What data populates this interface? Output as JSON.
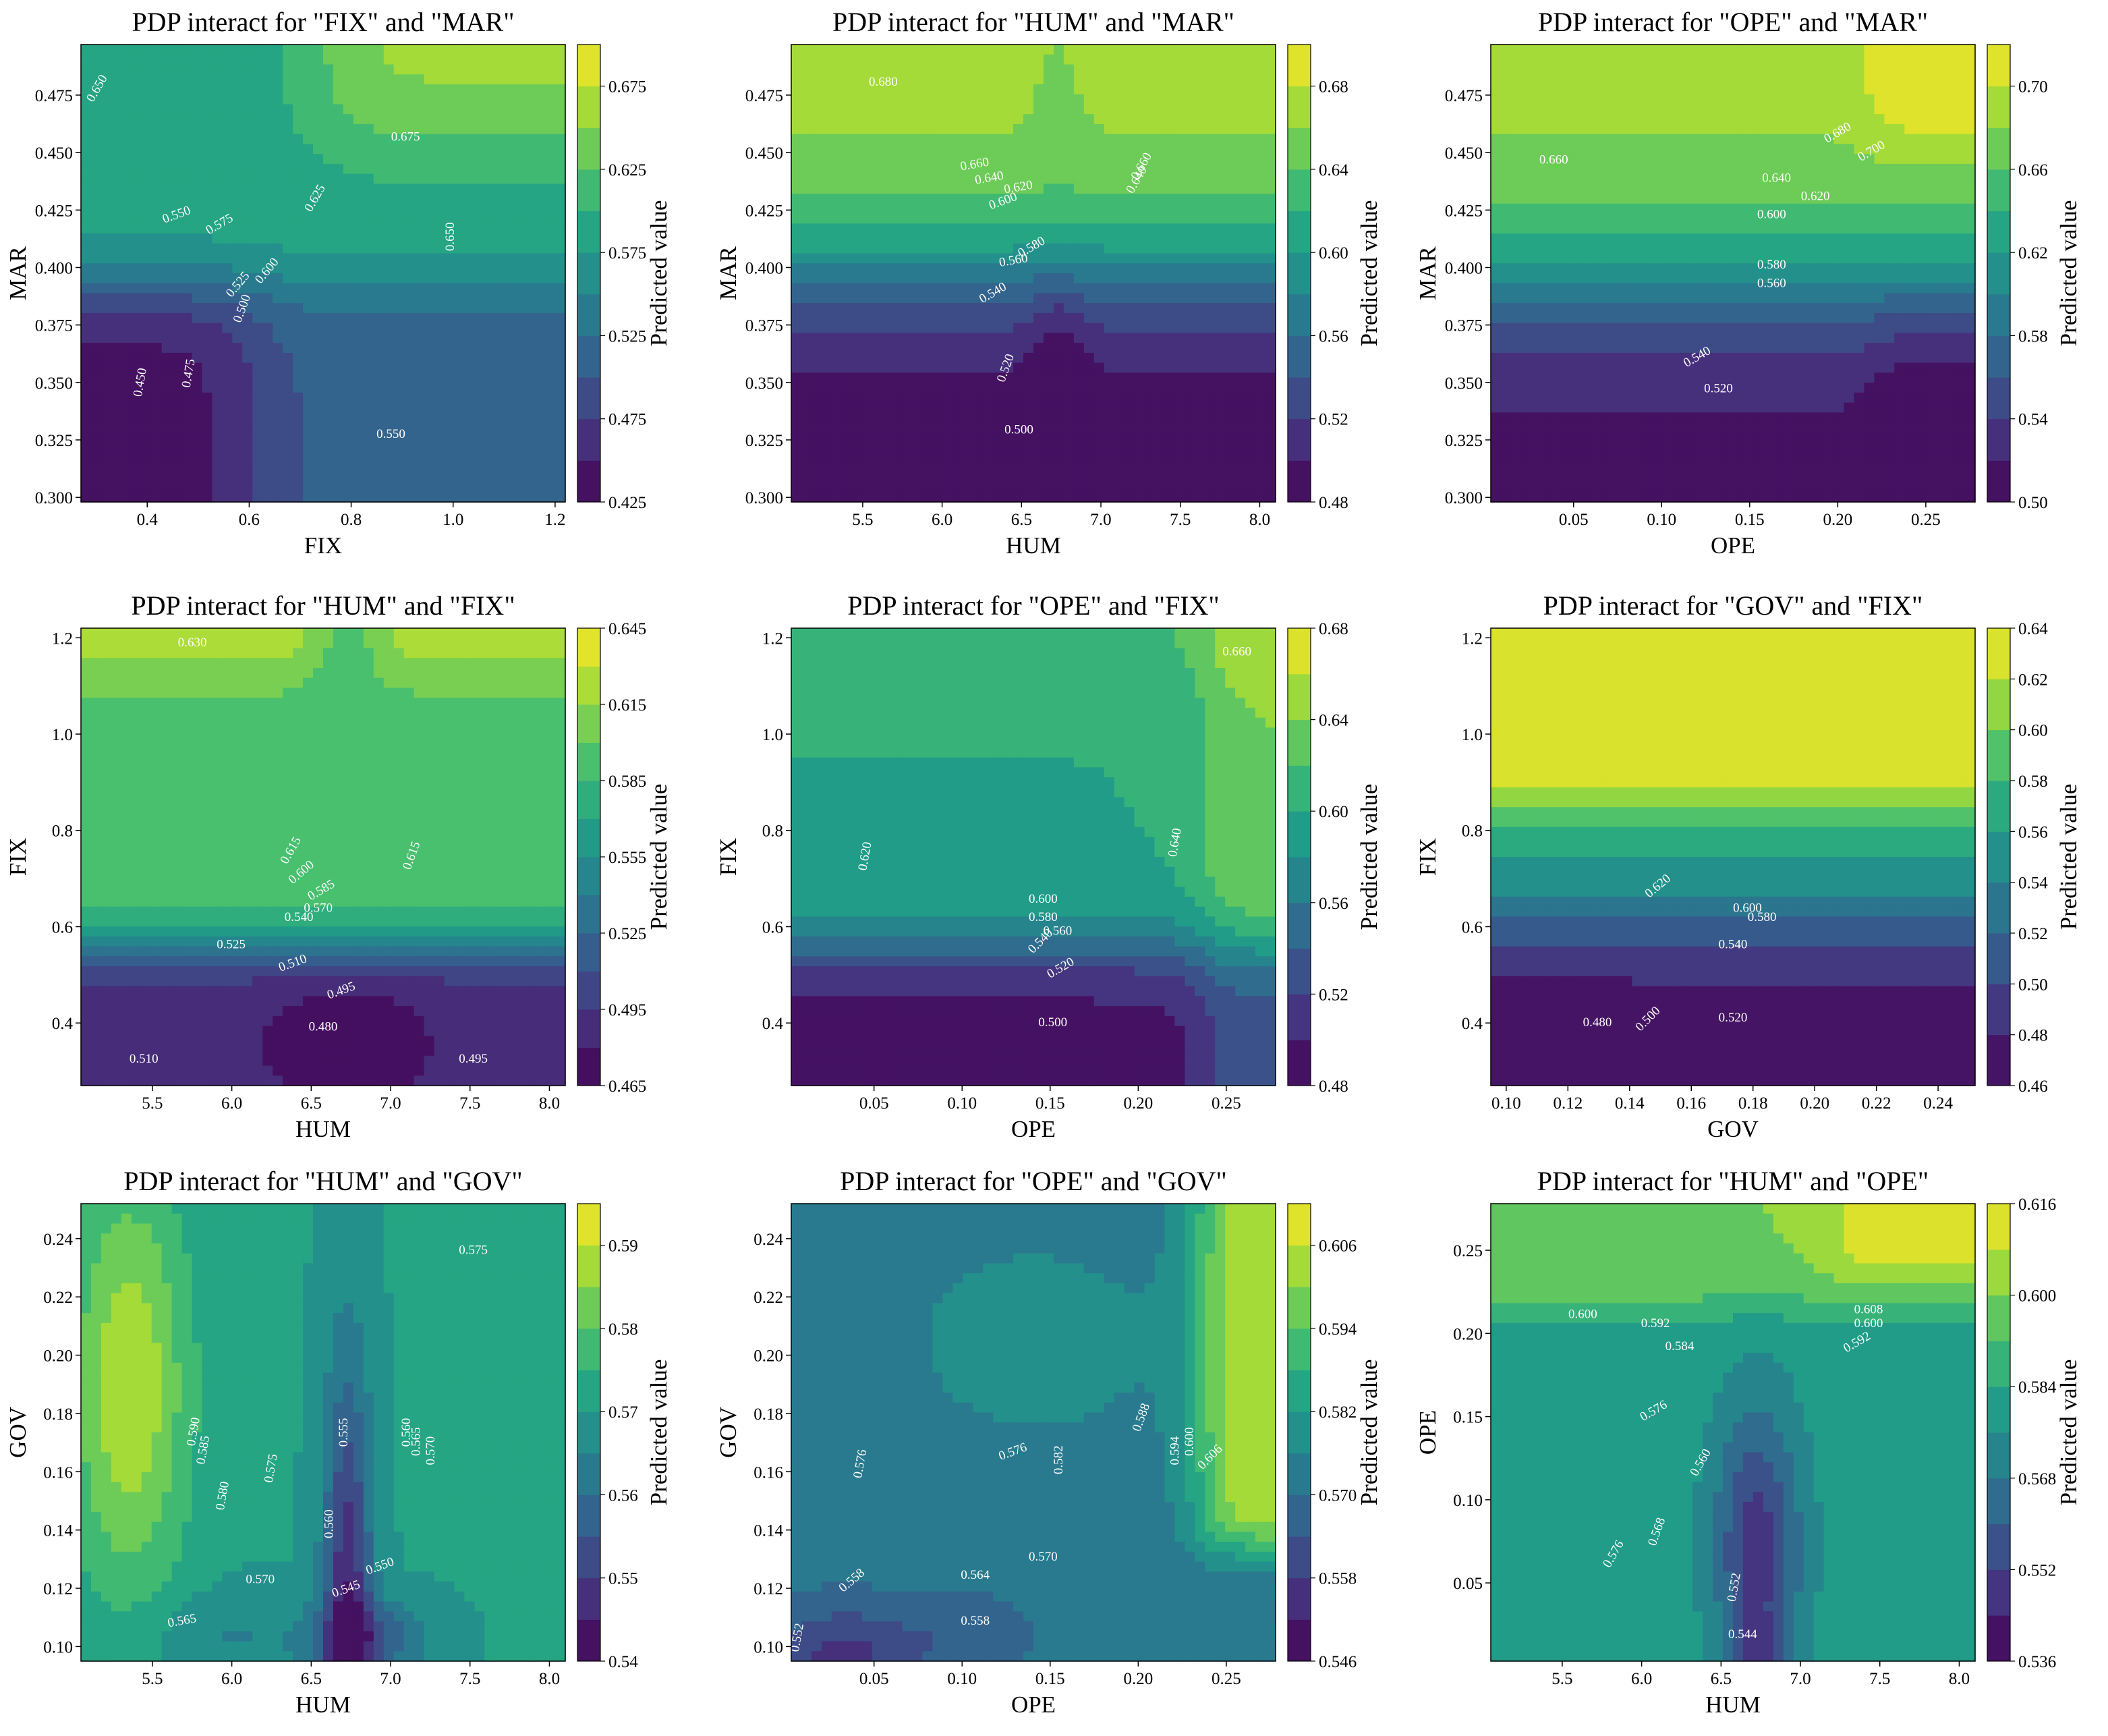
{
  "colormap": [
    "#440154",
    "#46327e",
    "#365c8d",
    "#277f8e",
    "#1fa187",
    "#4ac16d",
    "#a0da39",
    "#fde725"
  ],
  "contour_line_color": "#ffffff",
  "colorbar_label": "Predicted value",
  "chart_data": [
    {
      "type": "heatmap",
      "title": "PDP interact for \"FIX\" and \"MAR\"",
      "xlabel": "FIX",
      "ylabel": "MAR",
      "xlim": [
        0.27,
        1.22
      ],
      "ylim": [
        0.298,
        0.497
      ],
      "xticks": [
        "0.4",
        "0.6",
        "0.8",
        "1.0",
        "1.2"
      ],
      "yticks": [
        "0.300",
        "0.325",
        "0.350",
        "0.375",
        "0.400",
        "0.425",
        "0.450",
        "0.475"
      ],
      "colorbar_ticks": [
        "0.425",
        "0.475",
        "0.525",
        "0.575",
        "0.625",
        "0.675"
      ],
      "levels": [
        "0.425",
        "0.450",
        "0.475",
        "0.500",
        "0.525",
        "0.550",
        "0.575",
        "0.600",
        "0.625",
        "0.650",
        "0.675",
        "0.700"
      ],
      "contour_labels": [
        "0.650",
        "0.675",
        "0.625",
        "0.550",
        "0.575",
        "0.650",
        "0.600",
        "0.525",
        "0.500",
        "0.475",
        "0.450",
        "0.550"
      ],
      "grid": false
    },
    {
      "type": "heatmap",
      "title": "PDP interact for \"HUM\" and \"MAR\"",
      "xlabel": "HUM",
      "ylabel": "MAR",
      "xlim": [
        5.05,
        8.1
      ],
      "ylim": [
        0.298,
        0.497
      ],
      "xticks": [
        "5.5",
        "6.0",
        "6.5",
        "7.0",
        "7.5",
        "8.0"
      ],
      "yticks": [
        "0.300",
        "0.325",
        "0.350",
        "0.375",
        "0.400",
        "0.425",
        "0.450",
        "0.475"
      ],
      "colorbar_ticks": [
        "0.48",
        "0.52",
        "0.56",
        "0.60",
        "0.64",
        "0.68"
      ],
      "levels": [
        "0.48",
        "0.50",
        "0.52",
        "0.54",
        "0.56",
        "0.58",
        "0.60",
        "0.62",
        "0.64",
        "0.66",
        "0.68",
        "0.70"
      ],
      "contour_labels": [
        "0.680",
        "0.660",
        "0.640",
        "0.620",
        "0.600",
        "0.660",
        "0.640",
        "0.580",
        "0.560",
        "0.540",
        "0.520",
        "0.500"
      ],
      "grid": false
    },
    {
      "type": "heatmap",
      "title": "PDP interact for \"OPE\" and \"MAR\"",
      "xlabel": "OPE",
      "ylabel": "MAR",
      "xlim": [
        0.003,
        0.278
      ],
      "ylim": [
        0.298,
        0.497
      ],
      "xticks": [
        "0.05",
        "0.10",
        "0.15",
        "0.20",
        "0.25"
      ],
      "yticks": [
        "0.300",
        "0.325",
        "0.350",
        "0.375",
        "0.400",
        "0.425",
        "0.450",
        "0.475"
      ],
      "colorbar_ticks": [
        "0.50",
        "0.54",
        "0.58",
        "0.62",
        "0.66",
        "0.70"
      ],
      "levels": [
        "0.50",
        "0.52",
        "0.54",
        "0.56",
        "0.58",
        "0.60",
        "0.62",
        "0.64",
        "0.66",
        "0.68",
        "0.70",
        "0.72"
      ],
      "contour_labels": [
        "0.660",
        "0.680",
        "0.700",
        "0.640",
        "0.620",
        "0.600",
        "0.580",
        "0.560",
        "0.540",
        "0.520"
      ],
      "grid": false
    },
    {
      "type": "heatmap",
      "title": "PDP interact for \"HUM\" and \"FIX\"",
      "xlabel": "HUM",
      "ylabel": "FIX",
      "xlim": [
        5.05,
        8.1
      ],
      "ylim": [
        0.27,
        1.22
      ],
      "xticks": [
        "5.5",
        "6.0",
        "6.5",
        "7.0",
        "7.5",
        "8.0"
      ],
      "yticks": [
        "0.4",
        "0.6",
        "0.8",
        "1.0",
        "1.2"
      ],
      "colorbar_ticks": [
        "0.465",
        "0.495",
        "0.525",
        "0.555",
        "0.585",
        "0.615",
        "0.645"
      ],
      "levels": [
        "0.465",
        "0.480",
        "0.495",
        "0.510",
        "0.525",
        "0.540",
        "0.555",
        "0.570",
        "0.585",
        "0.600",
        "0.615",
        "0.630",
        "0.645"
      ],
      "contour_labels": [
        "0.630",
        "0.615",
        "0.615",
        "0.600",
        "0.585",
        "0.570",
        "0.540",
        "0.525",
        "0.510",
        "0.495",
        "0.480",
        "0.510",
        "0.495"
      ],
      "grid": false
    },
    {
      "type": "heatmap",
      "title": "PDP interact for \"OPE\" and \"FIX\"",
      "xlabel": "OPE",
      "ylabel": "FIX",
      "xlim": [
        0.003,
        0.278
      ],
      "ylim": [
        0.27,
        1.22
      ],
      "xticks": [
        "0.05",
        "0.10",
        "0.15",
        "0.20",
        "0.25"
      ],
      "yticks": [
        "0.4",
        "0.6",
        "0.8",
        "1.0",
        "1.2"
      ],
      "colorbar_ticks": [
        "0.48",
        "0.52",
        "0.56",
        "0.60",
        "0.64",
        "0.68"
      ],
      "levels": [
        "0.48",
        "0.50",
        "0.52",
        "0.54",
        "0.56",
        "0.58",
        "0.60",
        "0.62",
        "0.64",
        "0.66",
        "0.68"
      ],
      "contour_labels": [
        "0.660",
        "0.640",
        "0.620",
        "0.600",
        "0.580",
        "0.560",
        "0.540",
        "0.520",
        "0.500"
      ],
      "grid": false
    },
    {
      "type": "heatmap",
      "title": "PDP interact for \"GOV\" and \"FIX\"",
      "xlabel": "GOV",
      "ylabel": "FIX",
      "xlim": [
        0.095,
        0.252
      ],
      "ylim": [
        0.27,
        1.22
      ],
      "xticks": [
        "0.10",
        "0.12",
        "0.14",
        "0.16",
        "0.18",
        "0.20",
        "0.22",
        "0.24"
      ],
      "yticks": [
        "0.4",
        "0.6",
        "0.8",
        "1.0",
        "1.2"
      ],
      "colorbar_ticks": [
        "0.46",
        "0.48",
        "0.50",
        "0.52",
        "0.54",
        "0.56",
        "0.58",
        "0.60",
        "0.62",
        "0.64"
      ],
      "levels": [
        "0.46",
        "0.48",
        "0.50",
        "0.52",
        "0.54",
        "0.56",
        "0.58",
        "0.60",
        "0.62",
        "0.64"
      ],
      "contour_labels": [
        "0.620",
        "0.600",
        "0.580",
        "0.540",
        "0.520",
        "0.500",
        "0.480"
      ],
      "grid": false
    },
    {
      "type": "heatmap",
      "title": "PDP interact for \"HUM\" and \"GOV\"",
      "xlabel": "HUM",
      "ylabel": "GOV",
      "xlim": [
        5.05,
        8.1
      ],
      "ylim": [
        0.095,
        0.252
      ],
      "xticks": [
        "5.5",
        "6.0",
        "6.5",
        "7.0",
        "7.5",
        "8.0"
      ],
      "yticks": [
        "0.10",
        "0.12",
        "0.14",
        "0.16",
        "0.18",
        "0.20",
        "0.22",
        "0.24"
      ],
      "colorbar_ticks": [
        "0.54",
        "0.55",
        "0.56",
        "0.57",
        "0.58",
        "0.59"
      ],
      "levels": [
        "0.540",
        "0.545",
        "0.550",
        "0.555",
        "0.560",
        "0.565",
        "0.570",
        "0.575",
        "0.580",
        "0.585",
        "0.590",
        "0.595"
      ],
      "contour_labels": [
        "0.575",
        "0.590",
        "0.585",
        "0.580",
        "0.575",
        "0.555",
        "0.560",
        "0.560",
        "0.565",
        "0.570",
        "0.570",
        "0.565",
        "0.550",
        "0.545"
      ],
      "grid": false
    },
    {
      "type": "heatmap",
      "title": "PDP interact for \"OPE\" and \"GOV\"",
      "xlabel": "OPE",
      "ylabel": "GOV",
      "xlim": [
        0.003,
        0.278
      ],
      "ylim": [
        0.095,
        0.252
      ],
      "xticks": [
        "0.05",
        "0.10",
        "0.15",
        "0.20",
        "0.25"
      ],
      "yticks": [
        "0.10",
        "0.12",
        "0.14",
        "0.16",
        "0.18",
        "0.20",
        "0.22",
        "0.24"
      ],
      "colorbar_ticks": [
        "0.546",
        "0.558",
        "0.570",
        "0.582",
        "0.594",
        "0.606"
      ],
      "levels": [
        "0.546",
        "0.552",
        "0.558",
        "0.564",
        "0.570",
        "0.576",
        "0.582",
        "0.588",
        "0.594",
        "0.600",
        "0.606",
        "0.612"
      ],
      "contour_labels": [
        "0.576",
        "0.576",
        "0.582",
        "0.588",
        "0.600",
        "0.594",
        "0.606",
        "0.570",
        "0.564",
        "0.558",
        "0.558",
        "0.552"
      ],
      "grid": false
    },
    {
      "type": "heatmap",
      "title": "PDP interact for \"HUM\" and \"OPE\"",
      "xlabel": "HUM",
      "ylabel": "OPE",
      "xlim": [
        5.05,
        8.1
      ],
      "ylim": [
        0.003,
        0.278
      ],
      "xticks": [
        "5.5",
        "6.0",
        "6.5",
        "7.0",
        "7.5",
        "8.0"
      ],
      "yticks": [
        "0.05",
        "0.10",
        "0.15",
        "0.20",
        "0.25"
      ],
      "colorbar_ticks": [
        "0.536",
        "0.552",
        "0.568",
        "0.584",
        "0.600",
        "0.616"
      ],
      "levels": [
        "0.536",
        "0.544",
        "0.552",
        "0.560",
        "0.568",
        "0.576",
        "0.584",
        "0.592",
        "0.600",
        "0.608",
        "0.616"
      ],
      "contour_labels": [
        "0.600",
        "0.592",
        "0.584",
        "0.608",
        "0.600",
        "0.592",
        "0.576",
        "0.560",
        "0.568",
        "0.576",
        "0.552",
        "0.544"
      ],
      "grid": false
    }
  ]
}
